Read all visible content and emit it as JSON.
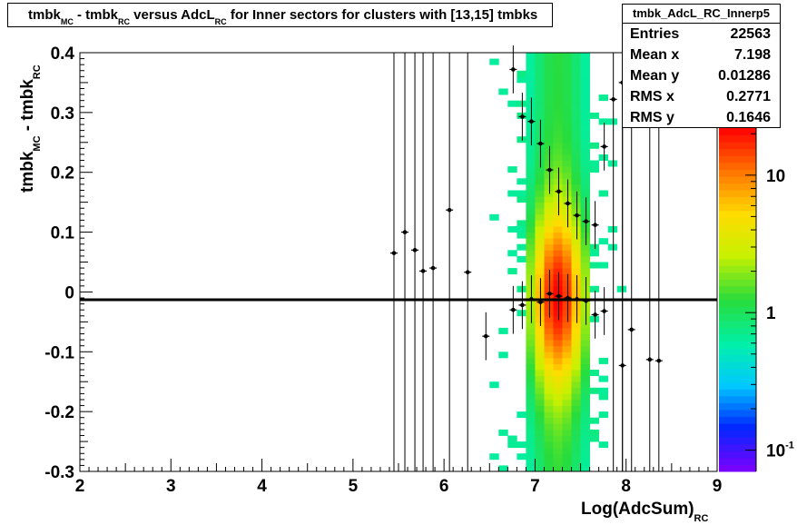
{
  "title_parts": [
    "tmbk",
    "MC",
    " - tmbk",
    "RC",
    " versus AdcL",
    "RC",
    " for Inner sectors for clusters with [13,15] tmbks"
  ],
  "stats": {
    "name": "tmbk_AdcL_RC_Innerp5",
    "rows": [
      {
        "label": "Entries",
        "value": "22563"
      },
      {
        "label": "Mean x",
        "value": "7.198"
      },
      {
        "label": "Mean y",
        "value": "0.01286"
      },
      {
        "label": "RMS x",
        "value": "0.2771"
      },
      {
        "label": "RMS y",
        "value": "0.1646"
      }
    ]
  },
  "chart_data": {
    "type": "heatmap",
    "xlabel": "Log(AdcSum)",
    "xlabel_sub": "RC",
    "ylabel": "tmbk",
    "ylabel_sub1": "MC",
    "ylabel_mid": " - tmbk",
    "ylabel_sub2": "RC",
    "xlim": [
      2,
      9
    ],
    "ylim": [
      -0.3,
      0.4
    ],
    "x_ticks": [
      2,
      3,
      4,
      5,
      6,
      7,
      8,
      9
    ],
    "y_ticks": [
      -0.3,
      -0.2,
      -0.1,
      0,
      0.1,
      0.2,
      0.3,
      0.4
    ],
    "y_tick_labels": [
      "-0.3",
      "-0.2",
      "-0.1",
      "0",
      "0.1",
      "0.2",
      "0.3",
      "0.4"
    ],
    "colorbar": {
      "scale": "log",
      "labels": [
        {
          "value": 10,
          "text": "10"
        },
        {
          "value": 1,
          "text": "1"
        },
        {
          "value": 0.1,
          "text": "10",
          "exp": "-1"
        }
      ]
    },
    "fit_line_y": -0.013,
    "profile_points": [
      {
        "x": 5.45,
        "y": 0.065
      },
      {
        "x": 5.57,
        "y": 0.1
      },
      {
        "x": 5.68,
        "y": 0.07
      },
      {
        "x": 5.77,
        "y": 0.035
      },
      {
        "x": 5.88,
        "y": 0.04
      },
      {
        "x": 6.06,
        "y": 0.137
      },
      {
        "x": 6.26,
        "y": 0.033
      },
      {
        "x": 6.46,
        "y": -0.074
      },
      {
        "x": 6.76,
        "y": 0.372
      },
      {
        "x": 6.76,
        "y": -0.03
      },
      {
        "x": 6.86,
        "y": 0.293
      },
      {
        "x": 6.86,
        "y": -0.022
      },
      {
        "x": 6.96,
        "y": 0.285
      },
      {
        "x": 6.96,
        "y": -0.012
      },
      {
        "x": 7.06,
        "y": 0.248
      },
      {
        "x": 7.06,
        "y": -0.017
      },
      {
        "x": 7.16,
        "y": 0.204
      },
      {
        "x": 7.16,
        "y": -0.003
      },
      {
        "x": 7.26,
        "y": 0.168
      },
      {
        "x": 7.26,
        "y": -0.007
      },
      {
        "x": 7.36,
        "y": 0.148
      },
      {
        "x": 7.36,
        "y": -0.01
      },
      {
        "x": 7.46,
        "y": 0.128
      },
      {
        "x": 7.46,
        "y": -0.012
      },
      {
        "x": 7.56,
        "y": 0.118
      },
      {
        "x": 7.56,
        "y": -0.015
      },
      {
        "x": 7.66,
        "y": 0.112
      },
      {
        "x": 7.66,
        "y": -0.038
      },
      {
        "x": 7.76,
        "y": 0.243
      },
      {
        "x": 7.76,
        "y": -0.032
      },
      {
        "x": 7.86,
        "y": 0.322
      },
      {
        "x": 7.96,
        "y": 0.35
      },
      {
        "x": 7.96,
        "y": -0.123
      },
      {
        "x": 8.06,
        "y": -0.063
      },
      {
        "x": 8.26,
        "y": -0.113
      },
      {
        "x": 8.36,
        "y": -0.115
      }
    ]
  }
}
